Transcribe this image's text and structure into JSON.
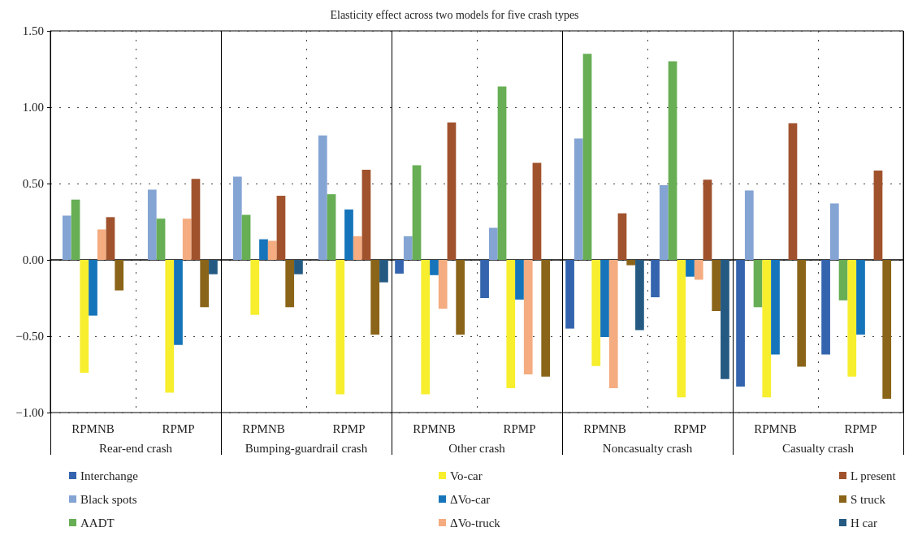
{
  "chart_data": {
    "type": "bar",
    "title": "Elasticity effect across two models for five crash types",
    "categories": [
      "RPMNB",
      "RPMP",
      "RPMNB",
      "RPMP",
      "RPMNB",
      "RPMP",
      "RPMNB",
      "RPMP",
      "RPMNB",
      "RPMP"
    ],
    "annotations": [
      "Rear-end crash",
      "Bumping-guardrail crash",
      "Other crash",
      "Noncasualty crash",
      "Casualty crash"
    ],
    "series": [
      {
        "name": "Interchange",
        "color": "#3464ae",
        "values": [
          null,
          null,
          null,
          null,
          -0.09,
          -0.25,
          -0.45,
          -0.245,
          -0.83,
          -0.62
        ]
      },
      {
        "name": "Black spots",
        "color": "#84a4d4",
        "values": [
          0.29,
          0.46,
          0.545,
          0.815,
          0.155,
          0.21,
          0.795,
          0.49,
          0.455,
          0.37
        ]
      },
      {
        "name": "AADT",
        "color": "#67ae55",
        "values": [
          0.395,
          0.27,
          0.295,
          0.43,
          0.62,
          1.135,
          1.35,
          1.3,
          -0.31,
          -0.265
        ]
      },
      {
        "name": "Vo-car",
        "color": "#f7ee2e",
        "values": [
          -0.74,
          -0.87,
          -0.36,
          -0.88,
          -0.88,
          -0.84,
          -0.695,
          -0.9,
          -0.9,
          -0.765
        ]
      },
      {
        "name": "ΔVo-car",
        "color": "#1674ba",
        "values": [
          -0.365,
          -0.557,
          0.135,
          0.33,
          -0.1,
          -0.26,
          -0.505,
          -0.11,
          -0.62,
          -0.49
        ]
      },
      {
        "name": "ΔVo-truck",
        "color": "#f4ac80",
        "values": [
          0.2,
          0.27,
          0.125,
          0.155,
          -0.32,
          -0.75,
          -0.84,
          -0.13,
          null,
          null
        ]
      },
      {
        "name": "L present",
        "color": "#a0522d",
        "values": [
          0.28,
          0.53,
          0.42,
          0.59,
          0.9,
          0.635,
          0.305,
          0.525,
          0.895,
          0.585
        ]
      },
      {
        "name": "S truck",
        "color": "#8a6418",
        "values": [
          -0.2,
          -0.31,
          -0.31,
          -0.49,
          -0.49,
          -0.765,
          -0.035,
          -0.335,
          -0.7,
          -0.91
        ]
      },
      {
        "name": "H car",
        "color": "#245a82",
        "values": [
          null,
          -0.094,
          -0.094,
          -0.147,
          null,
          null,
          -0.46,
          -0.78,
          null,
          null
        ]
      }
    ],
    "ylim": [
      -1,
      1.5
    ],
    "yticks": [
      {
        "value": -1,
        "label": "−1.00"
      },
      {
        "value": -0.5,
        "label": "−0.50"
      },
      {
        "value": 0,
        "label": "0.00"
      },
      {
        "value": 0.5,
        "label": "0.50"
      },
      {
        "value": 1,
        "label": "1.00"
      },
      {
        "value": 1.5,
        "label": "1.50"
      }
    ],
    "grid": true,
    "legend": "bottom"
  }
}
